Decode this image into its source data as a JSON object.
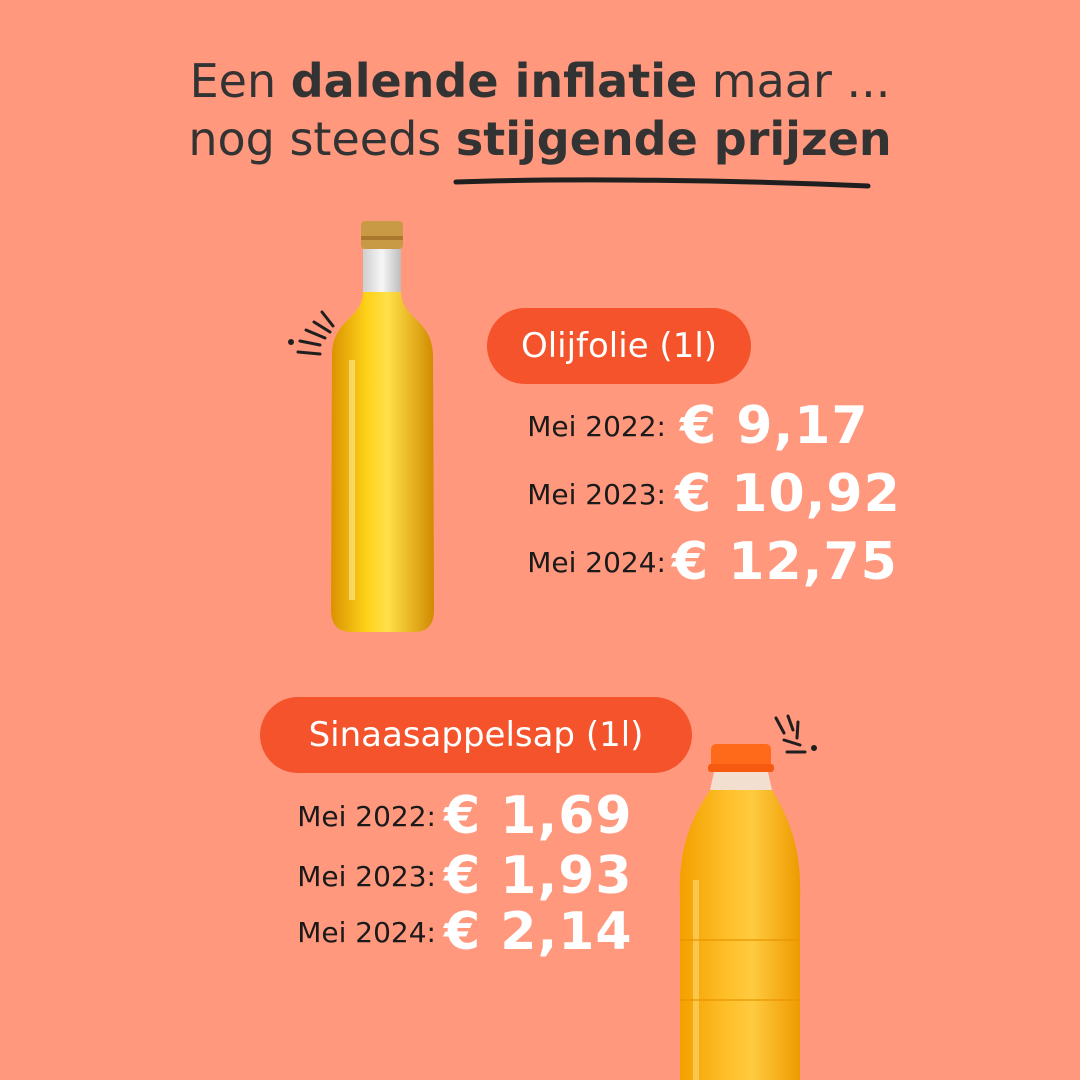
{
  "title": {
    "line1_pre": "Een ",
    "line1_bold": "dalende inflatie",
    "line1_post": " maar ...",
    "line2_pre": "nog steeds ",
    "line2_bold": "stijgende prijzen"
  },
  "products": [
    {
      "name": "Olijfolie (1l)",
      "icon": "oil-bottle-icon",
      "prices": [
        {
          "label": "Mei 2022:",
          "value": "€ 9,17"
        },
        {
          "label": "Mei 2023:",
          "value": "€ 10,92"
        },
        {
          "label": "Mei 2024:",
          "value": "€ 12,75"
        }
      ]
    },
    {
      "name": "Sinaasappelsap (1l)",
      "icon": "juice-bottle-icon",
      "prices": [
        {
          "label": "Mei 2022:",
          "value": "€ 1,69"
        },
        {
          "label": "Mei 2023:",
          "value": "€ 1,93"
        },
        {
          "label": "Mei 2024:",
          "value": "€ 2,14"
        }
      ]
    }
  ],
  "colors": {
    "background": "#FF987D",
    "badge": "#F5532B",
    "price_text": "#FFFFFF",
    "title_text": "#333333"
  }
}
